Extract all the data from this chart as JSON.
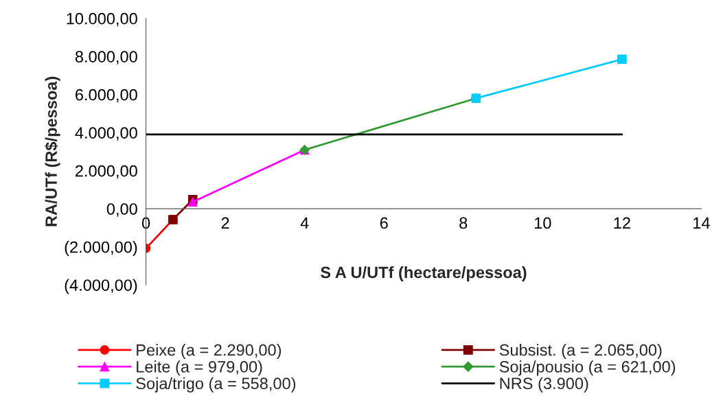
{
  "chart_data": {
    "type": "line",
    "xlabel": "S A U/UTf (hectare/pessoa)",
    "ylabel": "RA/UTf (R$/pessoa)",
    "xlim": [
      0,
      14
    ],
    "xticks": [
      0,
      2,
      4,
      6,
      8,
      10,
      12,
      14
    ],
    "ylim": [
      -4000,
      10000
    ],
    "yticks": [
      {
        "value": -4000,
        "label": "(4.000,00)"
      },
      {
        "value": -2000,
        "label": "(2.000,00)"
      },
      {
        "value": 0,
        "label": "0,00"
      },
      {
        "value": 2000,
        "label": "2.000,00"
      },
      {
        "value": 4000,
        "label": "4.000,00"
      },
      {
        "value": 6000,
        "label": "6.000,00"
      },
      {
        "value": 8000,
        "label": "8.000,00"
      },
      {
        "value": 10000,
        "label": "10.000,00"
      }
    ],
    "grid": false,
    "legend": "bottom",
    "series": [
      {
        "name": "Peixe (a = 2.290,00)",
        "color": "#ff0000",
        "marker": "circle",
        "x": [
          0,
          0.68
        ],
        "values": [
          -2080,
          -570
        ]
      },
      {
        "name": "Subsist. (a = 2.065,00)",
        "color": "#800000",
        "marker": "square",
        "x": [
          0.68,
          1.18
        ],
        "values": [
          -570,
          480
        ]
      },
      {
        "name": "Leite (a = 979,00)",
        "color": "#ff00ff",
        "marker": "triangle",
        "x": [
          1.18,
          4
        ],
        "values": [
          360,
          3090
        ]
      },
      {
        "name": "Soja/pousio (a = 621,00)",
        "color": "#339933",
        "marker": "diamond",
        "x": [
          4,
          8.32
        ],
        "values": [
          3090,
          5800
        ]
      },
      {
        "name": "Soja/trigo (a = 558,00)",
        "color": "#00ccff",
        "marker": "square",
        "x": [
          8.32,
          12
        ],
        "values": [
          5800,
          7850
        ]
      },
      {
        "name": "NRS (3.900)",
        "color": "#000000",
        "marker": "none",
        "x": [
          0,
          12
        ],
        "values": [
          3900,
          3900
        ]
      }
    ]
  }
}
